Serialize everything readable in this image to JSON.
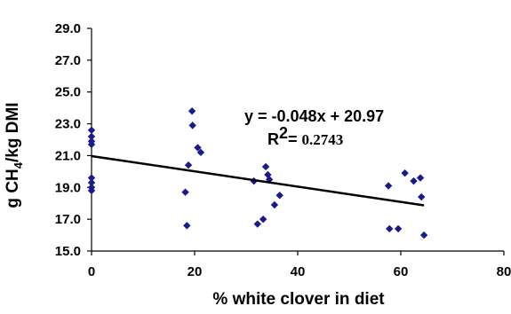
{
  "chart_data": {
    "type": "scatter",
    "title": "",
    "xlabel": "% white clover in diet",
    "ylabel_parts": {
      "prefix": "g CH",
      "subscript": "4",
      "suffix": "/kg DMI"
    },
    "xlim": [
      0,
      80
    ],
    "ylim": [
      15.0,
      29.0
    ],
    "x_ticks": [
      0,
      20,
      40,
      60,
      80
    ],
    "x_tick_labels": [
      "0",
      "20",
      "40",
      "60",
      "80"
    ],
    "y_ticks": [
      15.0,
      17.0,
      19.0,
      21.0,
      23.0,
      25.0,
      27.0,
      29.0
    ],
    "y_tick_labels": [
      "15.0",
      "17.0",
      "19.0",
      "21.0",
      "23.0",
      "25.0",
      "27.0",
      "29.0"
    ],
    "grid": false,
    "marker_color": "#1a1a8c",
    "trendline_color": "#000000",
    "series": [
      {
        "points": [
          [
            0,
            22.6
          ],
          [
            0,
            22.2
          ],
          [
            0,
            21.9
          ],
          [
            0,
            21.7
          ],
          [
            0,
            19.6
          ],
          [
            0,
            19.3
          ],
          [
            0,
            19.0
          ],
          [
            0,
            18.8
          ],
          [
            18.2,
            18.7
          ],
          [
            18.5,
            16.6
          ],
          [
            18.8,
            20.4
          ],
          [
            19.5,
            23.8
          ],
          [
            19.6,
            22.9
          ],
          [
            20.6,
            21.5
          ],
          [
            21.2,
            21.2
          ],
          [
            31.5,
            19.4
          ],
          [
            32.2,
            16.7
          ],
          [
            33.3,
            17.0
          ],
          [
            33.8,
            20.3
          ],
          [
            34.2,
            19.8
          ],
          [
            34.5,
            19.5
          ],
          [
            35.5,
            17.9
          ],
          [
            36.5,
            18.5
          ],
          [
            57.6,
            19.1
          ],
          [
            57.8,
            16.4
          ],
          [
            59.5,
            16.4
          ],
          [
            60.8,
            19.9
          ],
          [
            62.5,
            19.4
          ],
          [
            63.8,
            19.6
          ],
          [
            64.0,
            18.4
          ],
          [
            64.5,
            16.0
          ]
        ]
      }
    ],
    "trendline": {
      "slope": -0.048,
      "intercept": 20.97,
      "x_start": 0,
      "x_end": 64.5
    },
    "annotations": {
      "equation": "y = -0.048x + 20.97",
      "r2_prefix": "R",
      "r2_sup": "2",
      "r2_eq": "= ",
      "r2_value": "0.2743"
    }
  }
}
